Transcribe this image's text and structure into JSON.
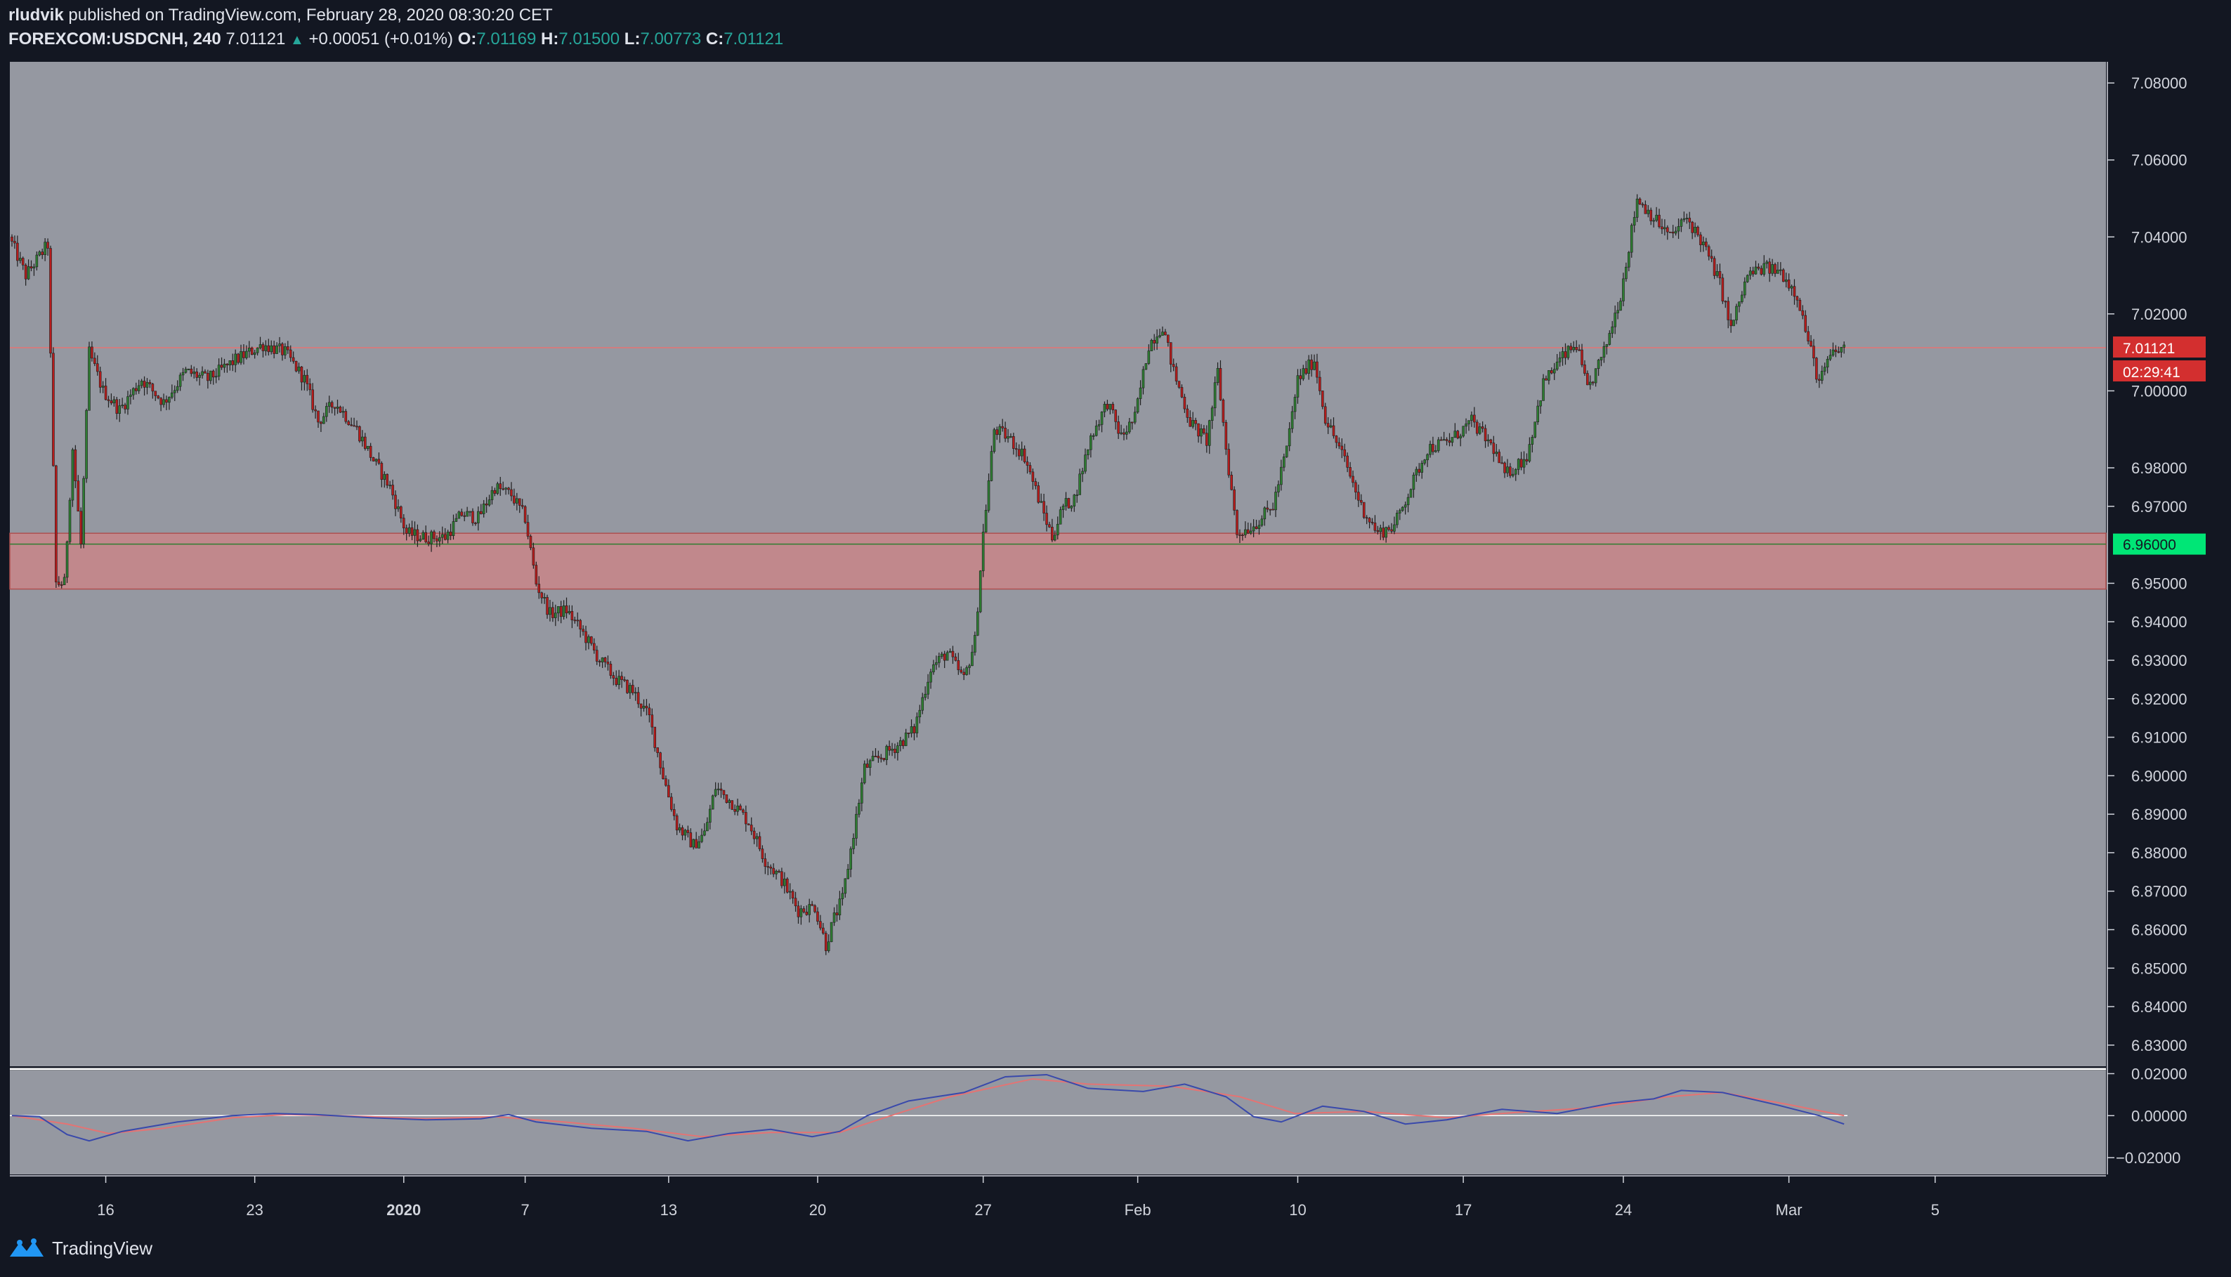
{
  "header": {
    "author": "rludvik",
    "published_text": "published on TradingView.com, February 28, 2020 08:30:20 CET",
    "symbol": "FOREXCOM:USDCNH, 240",
    "last": "7.01121",
    "change": "+0.00051 (+0.01%)",
    "o_label": "O:",
    "o_value": "7.01169",
    "h_label": "H:",
    "h_value": "7.01500",
    "l_label": "L:",
    "l_value": "7.00773",
    "c_label": "C:",
    "c_value": "7.01121"
  },
  "footer": {
    "brand": "TradingView",
    "icon": "tradingview-logo-icon"
  },
  "colors": {
    "background": "#131722",
    "pane": "#9598a1",
    "up": "#26a69a",
    "candle_up": "#2e7d32",
    "candle_down": "#b71c1c",
    "zone": "#c1888c",
    "price_tag": "#d32f2f",
    "level_tag": "#00e676",
    "macd": "#3949ab",
    "signal": "#e57373"
  },
  "chart_data": {
    "type": "candlestick",
    "instrument": "FOREXCOM:USDCNH",
    "timeframe": "240",
    "y_ticks": [
      "7.08000",
      "7.06000",
      "7.04000",
      "7.02000",
      "7.01121",
      "7.00000",
      "6.98000",
      "6.97000",
      "6.96000",
      "6.95000",
      "6.94000",
      "6.93000",
      "6.92000",
      "6.91000",
      "6.90000",
      "6.89000",
      "6.88000",
      "6.87000",
      "6.86000",
      "6.85000",
      "6.84000",
      "6.83000"
    ],
    "ylim": [
      6.8245,
      7.0855
    ],
    "x_ticks": [
      "16",
      "23",
      "2020",
      "7",
      "13",
      "20",
      "27",
      "Feb",
      "10",
      "17",
      "24",
      "Mar",
      "5"
    ],
    "current_price": "7.01121",
    "countdown": "02:29:41",
    "support_level": "6.96000",
    "support_zone": [
      6.9485,
      6.963
    ],
    "price_path": [
      [
        0,
        7.04
      ],
      [
        6,
        7.03
      ],
      [
        14,
        7.038
      ],
      [
        17,
        6.95
      ],
      [
        20,
        6.95
      ],
      [
        23,
        6.985
      ],
      [
        26,
        6.96
      ],
      [
        29,
        7.01
      ],
      [
        34,
        7.0
      ],
      [
        40,
        6.995
      ],
      [
        48,
        7.003
      ],
      [
        56,
        6.997
      ],
      [
        64,
        7.005
      ],
      [
        72,
        7.003
      ],
      [
        82,
        7.008
      ],
      [
        92,
        7.012
      ],
      [
        100,
        7.01
      ],
      [
        107,
        7.003
      ],
      [
        112,
        6.992
      ],
      [
        118,
        6.997
      ],
      [
        126,
        6.99
      ],
      [
        132,
        6.982
      ],
      [
        138,
        6.975
      ],
      [
        144,
        6.963
      ],
      [
        150,
        6.962
      ],
      [
        158,
        6.962
      ],
      [
        164,
        6.968
      ],
      [
        170,
        6.967
      ],
      [
        176,
        6.975
      ],
      [
        182,
        6.973
      ],
      [
        187,
        6.967
      ],
      [
        191,
        6.95
      ],
      [
        196,
        6.942
      ],
      [
        202,
        6.943
      ],
      [
        208,
        6.937
      ],
      [
        214,
        6.93
      ],
      [
        220,
        6.925
      ],
      [
        226,
        6.922
      ],
      [
        232,
        6.915
      ],
      [
        237,
        6.9
      ],
      [
        242,
        6.887
      ],
      [
        248,
        6.882
      ],
      [
        252,
        6.885
      ],
      [
        256,
        6.897
      ],
      [
        262,
        6.893
      ],
      [
        268,
        6.888
      ],
      [
        274,
        6.878
      ],
      [
        280,
        6.873
      ],
      [
        286,
        6.865
      ],
      [
        292,
        6.866
      ],
      [
        296,
        6.856
      ],
      [
        299,
        6.863
      ],
      [
        302,
        6.868
      ],
      [
        306,
        6.885
      ],
      [
        310,
        6.902
      ],
      [
        316,
        6.905
      ],
      [
        322,
        6.908
      ],
      [
        328,
        6.912
      ],
      [
        334,
        6.928
      ],
      [
        340,
        6.932
      ],
      [
        346,
        6.925
      ],
      [
        350,
        6.935
      ],
      [
        353,
        6.963
      ],
      [
        357,
        6.99
      ],
      [
        362,
        6.988
      ],
      [
        368,
        6.983
      ],
      [
        374,
        6.97
      ],
      [
        378,
        6.962
      ],
      [
        382,
        6.97
      ],
      [
        386,
        6.972
      ],
      [
        392,
        6.988
      ],
      [
        398,
        6.997
      ],
      [
        403,
        6.988
      ],
      [
        408,
        6.993
      ],
      [
        413,
        7.012
      ],
      [
        418,
        7.017
      ],
      [
        422,
        7.005
      ],
      [
        428,
        6.992
      ],
      [
        434,
        6.987
      ],
      [
        438,
        7.005
      ],
      [
        441,
        6.985
      ],
      [
        445,
        6.963
      ],
      [
        451,
        6.965
      ],
      [
        458,
        6.97
      ],
      [
        463,
        6.985
      ],
      [
        467,
        7.003
      ],
      [
        473,
        7.008
      ],
      [
        477,
        6.993
      ],
      [
        484,
        6.982
      ],
      [
        490,
        6.97
      ],
      [
        496,
        6.963
      ],
      [
        502,
        6.965
      ],
      [
        508,
        6.975
      ],
      [
        514,
        6.985
      ],
      [
        522,
        6.987
      ],
      [
        530,
        6.992
      ],
      [
        538,
        6.985
      ],
      [
        542,
        6.978
      ],
      [
        550,
        6.983
      ],
      [
        556,
        7.002
      ],
      [
        562,
        7.008
      ],
      [
        568,
        7.012
      ],
      [
        572,
        7.0
      ],
      [
        578,
        7.01
      ],
      [
        584,
        7.025
      ],
      [
        590,
        7.05
      ],
      [
        596,
        7.045
      ],
      [
        602,
        7.04
      ],
      [
        608,
        7.045
      ],
      [
        614,
        7.038
      ],
      [
        620,
        7.028
      ],
      [
        624,
        7.016
      ],
      [
        630,
        7.03
      ],
      [
        636,
        7.032
      ],
      [
        642,
        7.031
      ],
      [
        648,
        7.025
      ],
      [
        652,
        7.013
      ],
      [
        656,
        7.002
      ],
      [
        660,
        7.009
      ],
      [
        664,
        7.011
      ]
    ],
    "indicator": {
      "ticks": [
        "0.02000",
        "0.00000",
        "−0.02000"
      ],
      "ylim": [
        -0.028,
        0.0215
      ],
      "macd": [
        [
          0,
          0.0
        ],
        [
          10,
          -0.0005
        ],
        [
          20,
          -0.009
        ],
        [
          28,
          -0.012
        ],
        [
          40,
          -0.0075
        ],
        [
          60,
          -0.003
        ],
        [
          80,
          0.0
        ],
        [
          95,
          0.001
        ],
        [
          110,
          0.0005
        ],
        [
          130,
          -0.001
        ],
        [
          150,
          -0.002
        ],
        [
          170,
          -0.0015
        ],
        [
          180,
          0.0005
        ],
        [
          190,
          -0.003
        ],
        [
          210,
          -0.006
        ],
        [
          230,
          -0.0075
        ],
        [
          245,
          -0.012
        ],
        [
          260,
          -0.0085
        ],
        [
          275,
          -0.0065
        ],
        [
          290,
          -0.01
        ],
        [
          300,
          -0.0075
        ],
        [
          310,
          0.0
        ],
        [
          325,
          0.007
        ],
        [
          345,
          0.011
        ],
        [
          360,
          0.0185
        ],
        [
          375,
          0.0195
        ],
        [
          390,
          0.013
        ],
        [
          410,
          0.0115
        ],
        [
          425,
          0.015
        ],
        [
          440,
          0.009
        ],
        [
          450,
          -0.0005
        ],
        [
          460,
          -0.003
        ],
        [
          475,
          0.0045
        ],
        [
          490,
          0.002
        ],
        [
          505,
          -0.004
        ],
        [
          520,
          -0.002
        ],
        [
          540,
          0.003
        ],
        [
          560,
          0.001
        ],
        [
          580,
          0.006
        ],
        [
          595,
          0.008
        ],
        [
          605,
          0.012
        ],
        [
          620,
          0.011
        ],
        [
          640,
          0.005
        ],
        [
          655,
          0.0
        ],
        [
          664,
          -0.004
        ]
      ],
      "signal": [
        [
          0,
          0.0
        ],
        [
          20,
          -0.004
        ],
        [
          35,
          -0.0085
        ],
        [
          55,
          -0.006
        ],
        [
          80,
          -0.001
        ],
        [
          100,
          0.0005
        ],
        [
          130,
          -0.0005
        ],
        [
          150,
          -0.0015
        ],
        [
          175,
          -0.0005
        ],
        [
          200,
          -0.003
        ],
        [
          225,
          -0.006
        ],
        [
          250,
          -0.01
        ],
        [
          275,
          -0.008
        ],
        [
          300,
          -0.008
        ],
        [
          315,
          -0.0015
        ],
        [
          340,
          0.009
        ],
        [
          370,
          0.0175
        ],
        [
          390,
          0.015
        ],
        [
          420,
          0.014
        ],
        [
          445,
          0.009
        ],
        [
          465,
          0.001
        ],
        [
          490,
          0.002
        ],
        [
          520,
          -0.001
        ],
        [
          545,
          0.0015
        ],
        [
          575,
          0.004
        ],
        [
          600,
          0.009
        ],
        [
          620,
          0.011
        ],
        [
          645,
          0.005
        ],
        [
          664,
          0.0
        ]
      ]
    }
  }
}
